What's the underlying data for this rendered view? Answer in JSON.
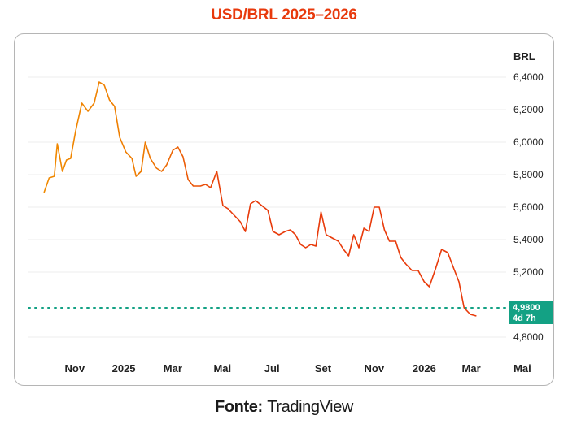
{
  "title": "USD/BRL 2025–2026",
  "footer": {
    "label": "Fonte:",
    "source": "TradingView"
  },
  "colors": {
    "title": "#e8390c",
    "line_start": "#f08a00",
    "line_end": "#e83a0a",
    "current": "#13a184",
    "grid": "#ececec"
  },
  "chart_data": {
    "type": "line",
    "title": "USD/BRL 2025–2026",
    "ylabel": "BRL",
    "ylim": [
      4.72,
      6.51
    ],
    "grid": true,
    "y_ticks": [
      "6,4000",
      "6,2000",
      "6,0000",
      "5,8000",
      "5,6000",
      "5,4000",
      "5,2000",
      "4,8000"
    ],
    "y_tick_values": [
      6.4,
      6.2,
      6.0,
      5.8,
      5.6,
      5.4,
      5.2,
      4.8
    ],
    "x_ticks": [
      {
        "label": "Nov",
        "x": 0.14
      },
      {
        "label": "2025",
        "x": 1.1
      },
      {
        "label": "Mar",
        "x": 2.06
      },
      {
        "label": "Mai",
        "x": 3.03
      },
      {
        "label": "Jul",
        "x": 4.0
      },
      {
        "label": "Set",
        "x": 5.0
      },
      {
        "label": "Nov",
        "x": 6.0
      },
      {
        "label": "2026",
        "x": 6.98
      },
      {
        "label": "Mar",
        "x": 7.9
      },
      {
        "label": "Mai",
        "x": 8.9
      }
    ],
    "current": {
      "value": 4.98,
      "label": "4,9800",
      "countdown": "4d 7h"
    },
    "series": [
      {
        "values": [
          [
            -0.46,
            5.69
          ],
          [
            -0.36,
            5.78
          ],
          [
            -0.26,
            5.79
          ],
          [
            -0.2,
            5.99
          ],
          [
            -0.1,
            5.82
          ],
          [
            -0.02,
            5.89
          ],
          [
            0.06,
            5.9
          ],
          [
            0.16,
            6.07
          ],
          [
            0.28,
            6.24
          ],
          [
            0.4,
            6.19
          ],
          [
            0.52,
            6.24
          ],
          [
            0.62,
            6.37
          ],
          [
            0.72,
            6.35
          ],
          [
            0.82,
            6.26
          ],
          [
            0.92,
            6.22
          ],
          [
            1.02,
            6.03
          ],
          [
            1.14,
            5.94
          ],
          [
            1.26,
            5.9
          ],
          [
            1.34,
            5.79
          ],
          [
            1.44,
            5.82
          ],
          [
            1.52,
            6.0
          ],
          [
            1.62,
            5.9
          ],
          [
            1.74,
            5.84
          ],
          [
            1.84,
            5.82
          ],
          [
            1.94,
            5.86
          ],
          [
            2.06,
            5.95
          ],
          [
            2.16,
            5.97
          ],
          [
            2.26,
            5.91
          ],
          [
            2.36,
            5.77
          ],
          [
            2.46,
            5.73
          ],
          [
            2.6,
            5.73
          ],
          [
            2.7,
            5.74
          ],
          [
            2.8,
            5.72
          ],
          [
            2.92,
            5.82
          ],
          [
            3.04,
            5.61
          ],
          [
            3.14,
            5.59
          ],
          [
            3.26,
            5.55
          ],
          [
            3.38,
            5.51
          ],
          [
            3.48,
            5.45
          ],
          [
            3.58,
            5.62
          ],
          [
            3.68,
            5.64
          ],
          [
            3.8,
            5.61
          ],
          [
            3.92,
            5.58
          ],
          [
            4.02,
            5.45
          ],
          [
            4.14,
            5.43
          ],
          [
            4.26,
            5.45
          ],
          [
            4.36,
            5.46
          ],
          [
            4.46,
            5.43
          ],
          [
            4.56,
            5.37
          ],
          [
            4.66,
            5.35
          ],
          [
            4.76,
            5.37
          ],
          [
            4.86,
            5.36
          ],
          [
            4.96,
            5.57
          ],
          [
            5.06,
            5.43
          ],
          [
            5.18,
            5.41
          ],
          [
            5.3,
            5.39
          ],
          [
            5.4,
            5.34
          ],
          [
            5.5,
            5.3
          ],
          [
            5.6,
            5.43
          ],
          [
            5.7,
            5.35
          ],
          [
            5.8,
            5.47
          ],
          [
            5.9,
            5.45
          ],
          [
            6.0,
            5.6
          ],
          [
            6.1,
            5.6
          ],
          [
            6.2,
            5.46
          ],
          [
            6.3,
            5.39
          ],
          [
            6.42,
            5.39
          ],
          [
            6.52,
            5.29
          ],
          [
            6.62,
            5.25
          ],
          [
            6.74,
            5.21
          ],
          [
            6.86,
            5.21
          ],
          [
            6.98,
            5.14
          ],
          [
            7.08,
            5.11
          ],
          [
            7.2,
            5.22
          ],
          [
            7.32,
            5.34
          ],
          [
            7.44,
            5.32
          ],
          [
            7.56,
            5.22
          ],
          [
            7.66,
            5.14
          ],
          [
            7.76,
            4.98
          ],
          [
            7.88,
            4.94
          ],
          [
            8.0,
            4.93
          ]
        ]
      }
    ]
  }
}
